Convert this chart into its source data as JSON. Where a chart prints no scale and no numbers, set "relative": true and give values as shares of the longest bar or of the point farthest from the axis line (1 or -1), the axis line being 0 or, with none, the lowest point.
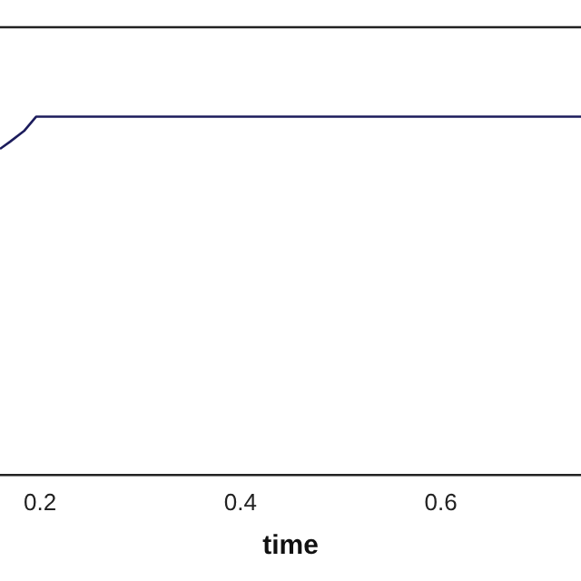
{
  "chart_data": {
    "type": "line",
    "xlabel": "time",
    "relative": true,
    "x": [
      0.16,
      0.17,
      0.184,
      0.196,
      0.74
    ],
    "series": [
      {
        "color": "#1c1c5c",
        "values": [
          0.91,
          0.93,
          0.96,
          1,
          1
        ]
      }
    ],
    "xlim": [
      0.16,
      0.74
    ],
    "xticks": [
      0.2,
      0.4,
      0.6
    ],
    "tick_labels": "x",
    "grid": false,
    "legend": false,
    "marker": "none",
    "line_style": "solid"
  }
}
